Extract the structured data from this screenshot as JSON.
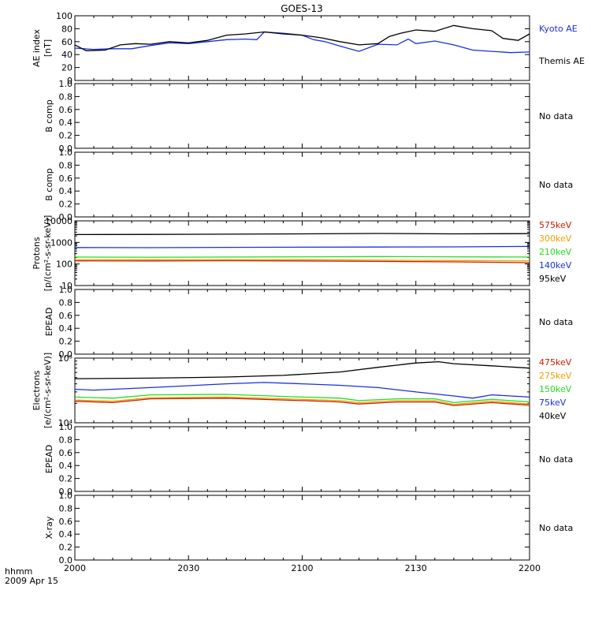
{
  "title": "GOES-13",
  "footer": {
    "time_label": "hhmm",
    "date_label": "2009 Apr 15"
  },
  "x_ticks": [
    "2000",
    "2030",
    "2100",
    "2130",
    "2200"
  ],
  "no_data_label": "No data",
  "colors": {
    "black": "#000000",
    "blue": "#1a2fe0",
    "green": "#22dd22",
    "orange": "#f0a000",
    "red": "#c81e00"
  },
  "chart_data": [
    {
      "type": "line",
      "ylabel": "AE index\n[nT]",
      "ylim": [
        0,
        100
      ],
      "yticks": [
        "0",
        "20",
        "40",
        "60",
        "80",
        "100"
      ],
      "x": [
        "20:00",
        "22:00"
      ],
      "legend": [
        "Kyoto AE",
        "Themis AE"
      ],
      "series": [
        {
          "name": "Kyoto AE",
          "color": "blue",
          "x": [
            0,
            5,
            10,
            15,
            20,
            25,
            30,
            35,
            40,
            45,
            48,
            50,
            55,
            60,
            63,
            66,
            70,
            75,
            80,
            85,
            88,
            90,
            95,
            100,
            105,
            110,
            115,
            120
          ],
          "values": [
            50,
            48,
            49,
            49,
            54,
            58,
            57,
            60,
            63,
            64,
            63,
            75,
            73,
            70,
            63,
            60,
            53,
            45,
            56,
            55,
            64,
            57,
            61,
            55,
            47,
            45,
            43,
            44
          ]
        },
        {
          "name": "Themis AE",
          "color": "black",
          "x": [
            0,
            3,
            8,
            12,
            16,
            20,
            25,
            30,
            35,
            40,
            45,
            50,
            55,
            60,
            65,
            70,
            75,
            80,
            83,
            86,
            90,
            95,
            100,
            105,
            110,
            113,
            117,
            120
          ],
          "values": [
            55,
            46,
            47,
            55,
            57,
            56,
            60,
            58,
            62,
            70,
            72,
            75,
            72,
            70,
            66,
            60,
            55,
            57,
            68,
            73,
            78,
            76,
            85,
            80,
            77,
            65,
            62,
            72
          ]
        }
      ]
    },
    {
      "type": "line",
      "ylabel": "B comp",
      "ylim": [
        0,
        1
      ],
      "yticks": [
        "0.0",
        "0.2",
        "0.4",
        "0.6",
        "0.8",
        "1.0"
      ],
      "status": "No data",
      "series": []
    },
    {
      "type": "line",
      "ylabel": "B comp",
      "ylim": [
        0,
        1
      ],
      "yticks": [
        "0.0",
        "0.2",
        "0.4",
        "0.6",
        "0.8",
        "1.0"
      ],
      "status": "No data",
      "series": []
    },
    {
      "type": "line",
      "ylabel": "Protons\n[p/(cm²-s-sr-keV)]",
      "log": true,
      "ylim": [
        10,
        10000
      ],
      "yticks": [
        "10",
        "100",
        "1000",
        "10000"
      ],
      "legend": [
        "575keV",
        "300keV",
        "210keV",
        "140keV",
        "95keV"
      ],
      "series": [
        {
          "name": "95keV",
          "color": "black",
          "x": [
            0,
            20,
            40,
            60,
            80,
            100,
            120
          ],
          "values": [
            2300,
            2350,
            2400,
            2500,
            2600,
            2500,
            2550
          ]
        },
        {
          "name": "140keV",
          "color": "blue",
          "x": [
            0,
            20,
            40,
            60,
            80,
            100,
            120
          ],
          "values": [
            580,
            570,
            590,
            600,
            610,
            620,
            650
          ]
        },
        {
          "name": "210keV",
          "color": "green",
          "x": [
            0,
            20,
            40,
            60,
            80,
            100,
            120
          ],
          "values": [
            210,
            205,
            210,
            215,
            220,
            215,
            210
          ]
        },
        {
          "name": "300keV",
          "color": "orange",
          "x": [
            0,
            20,
            40,
            60,
            80,
            100,
            120
          ],
          "values": [
            160,
            158,
            160,
            158,
            150,
            145,
            140
          ]
        },
        {
          "name": "575keV",
          "color": "red",
          "x": [
            0,
            20,
            40,
            60,
            80,
            100,
            120
          ],
          "values": [
            140,
            138,
            142,
            138,
            132,
            125,
            115
          ]
        }
      ]
    },
    {
      "type": "line",
      "ylabel": "EPEAD",
      "ylim": [
        0,
        1
      ],
      "yticks": [
        "0.0",
        "0.2",
        "0.4",
        "0.6",
        "0.8",
        "1.0"
      ],
      "status": "No data",
      "series": []
    },
    {
      "type": "line",
      "ylabel": "Electrons\n[e/(cm²-s-sr-keV)]",
      "log": true,
      "ylim": [
        10000,
        100000
      ],
      "yticks": [
        "10⁴",
        "10⁵"
      ],
      "legend": [
        "475keV",
        "275keV",
        "150keV",
        "75keV",
        "40keV"
      ],
      "series": [
        {
          "name": "40keV",
          "color": "black",
          "x": [
            0,
            20,
            40,
            55,
            70,
            80,
            90,
            96,
            100,
            110,
            120
          ],
          "values": [
            48000,
            49000,
            51000,
            54000,
            61000,
            72000,
            84000,
            88000,
            82000,
            76000,
            70000
          ]
        },
        {
          "name": "75keV",
          "color": "blue",
          "x": [
            0,
            5,
            20,
            40,
            50,
            60,
            70,
            80,
            90,
            100,
            105,
            110,
            120
          ],
          "values": [
            33000,
            32000,
            35000,
            40000,
            42000,
            40000,
            38000,
            35000,
            30000,
            26000,
            24000,
            27000,
            25000
          ]
        },
        {
          "name": "150keV",
          "color": "green",
          "x": [
            0,
            10,
            20,
            40,
            60,
            70,
            75,
            85,
            95,
            100,
            110,
            120
          ],
          "values": [
            25000,
            24000,
            27000,
            27500,
            25000,
            24000,
            22000,
            23500,
            23500,
            20500,
            23000,
            21000
          ]
        },
        {
          "name": "275keV",
          "color": "orange",
          "x": [
            0,
            10,
            20,
            40,
            60,
            70,
            75,
            85,
            95,
            100,
            110,
            120
          ],
          "values": [
            22500,
            21500,
            24500,
            25000,
            23000,
            22000,
            20500,
            22000,
            22000,
            19300,
            21500,
            19500
          ]
        },
        {
          "name": "475keV",
          "color": "red",
          "x": [
            0,
            10,
            20,
            40,
            60,
            70,
            75,
            85,
            95,
            100,
            110,
            120
          ],
          "values": [
            21500,
            20500,
            23500,
            24000,
            22000,
            21000,
            19500,
            21000,
            21000,
            18500,
            20500,
            18700
          ]
        }
      ]
    },
    {
      "type": "line",
      "ylabel": "EPEAD",
      "ylim": [
        0,
        1
      ],
      "yticks": [
        "0.0",
        "0.2",
        "0.4",
        "0.6",
        "0.8",
        "1.0"
      ],
      "status": "No data",
      "series": []
    },
    {
      "type": "line",
      "ylabel": "X-ray",
      "ylim": [
        0,
        1
      ],
      "yticks": [
        "0.0",
        "0.2",
        "0.4",
        "0.6",
        "0.8",
        "1.0"
      ],
      "status": "No data",
      "series": []
    }
  ]
}
